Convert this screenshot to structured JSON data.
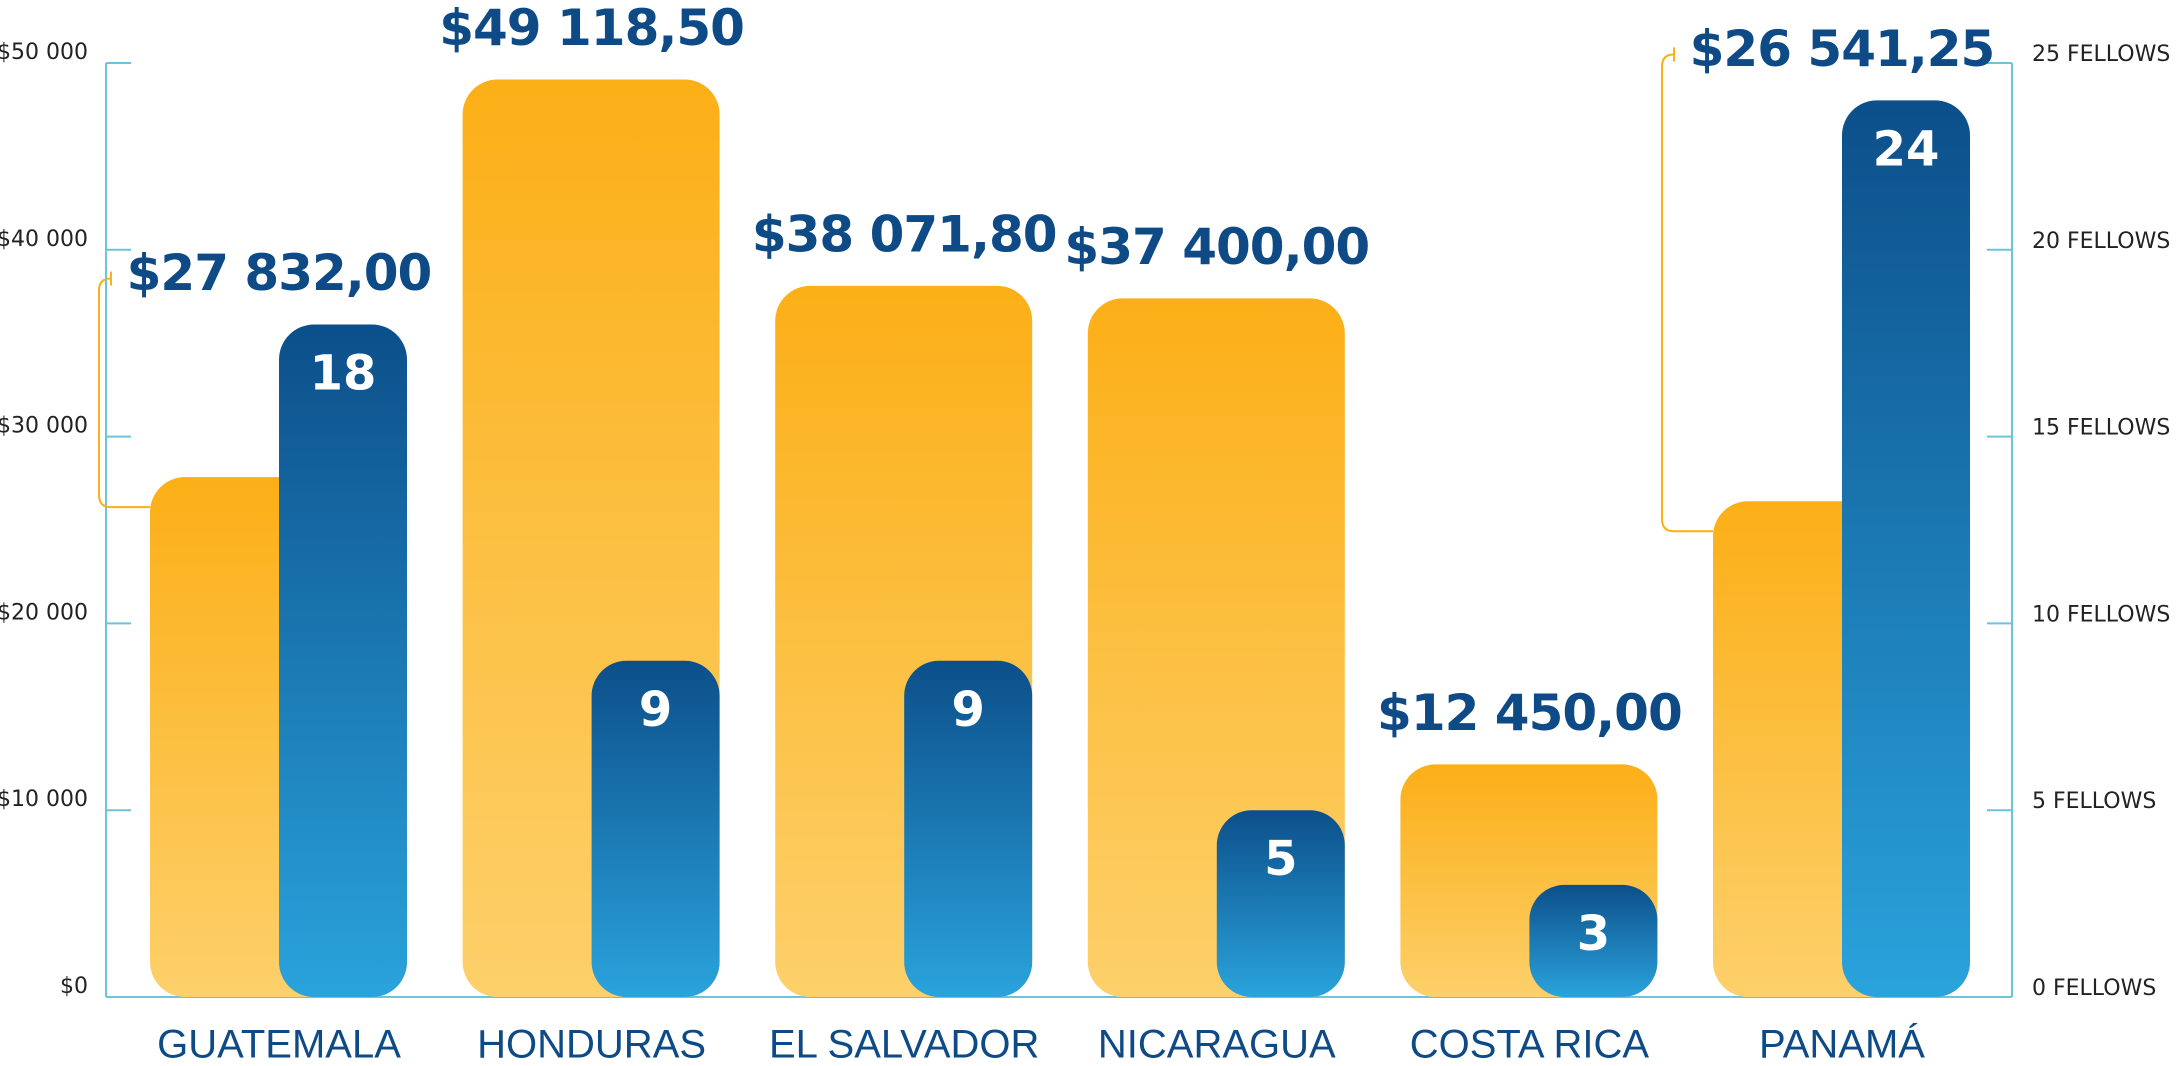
{
  "chart_data": {
    "type": "bar",
    "categories": [
      "GUATEMALA",
      "HONDURAS",
      "EL SALVADOR",
      "NICARAGUA",
      "COSTA RICA",
      "PANAMÁ"
    ],
    "series": [
      {
        "color": "#fcaf17",
        "values": [
          27832,
          49118.5,
          38071.8,
          37400,
          12450,
          26541.25
        ],
        "value_labels": [
          "$27 832,00",
          "$49 118,50",
          "$38 071,80",
          "$37 400,00",
          "$12 450,00",
          "$26 541,25"
        ]
      },
      {
        "color": "#0c4f8a",
        "axis": "y2",
        "values": [
          18,
          9,
          9,
          5,
          3,
          24
        ]
      }
    ],
    "ylim": [
      0,
      50000
    ],
    "yticks": [
      {
        "value": 0,
        "label": "$0"
      },
      {
        "value": 10000,
        "label": "$10 000"
      },
      {
        "value": 20000,
        "label": "$20 000"
      },
      {
        "value": 30000,
        "label": "$30 000"
      },
      {
        "value": 40000,
        "label": "$40 000"
      },
      {
        "value": 50000,
        "label": "$50 000"
      }
    ],
    "y2lim": [
      0,
      25
    ],
    "y2ticks": [
      {
        "value": 0,
        "label": "0 FELLOWS"
      },
      {
        "value": 5,
        "label": "5 FELLOWS"
      },
      {
        "value": 10,
        "label": "10 FELLOWS"
      },
      {
        "value": 15,
        "label": "15 FELLOWS"
      },
      {
        "value": 20,
        "label": "20 FELLOWS"
      },
      {
        "value": 25,
        "label": "25 FELLOWS"
      }
    ]
  }
}
